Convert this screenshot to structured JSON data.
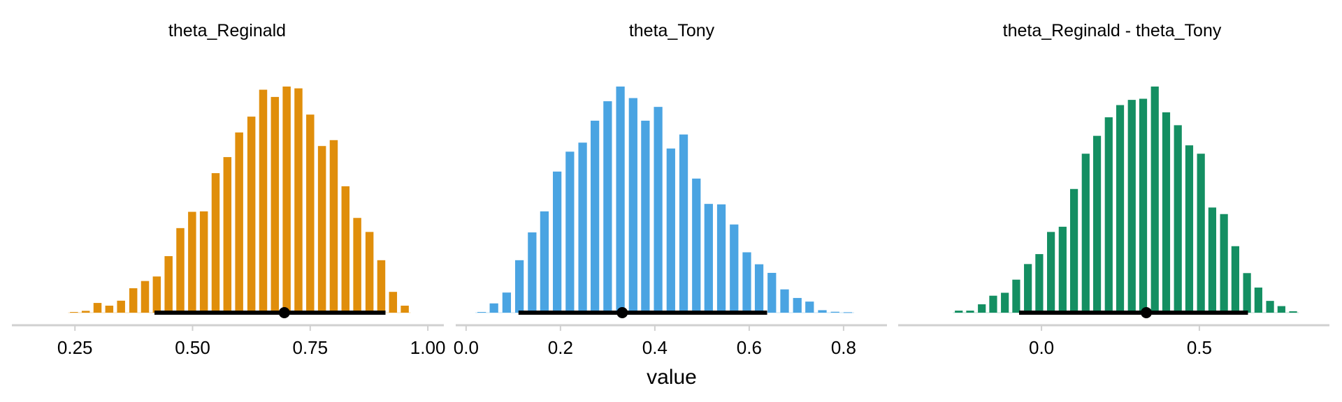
{
  "chart_data": [
    {
      "type": "bar",
      "title": "theta_Reginald",
      "color": "#E08E0B",
      "xlim": [
        0.116,
        1.034
      ],
      "xticks": [
        0.25,
        0.5,
        0.75,
        1.0
      ],
      "xtick_labels": [
        "0.25",
        "0.50",
        "0.75",
        "1.00"
      ],
      "bin_width": 0.0251,
      "x": [
        0.248,
        0.273,
        0.298,
        0.323,
        0.348,
        0.374,
        0.399,
        0.424,
        0.449,
        0.474,
        0.499,
        0.524,
        0.549,
        0.574,
        0.599,
        0.625,
        0.65,
        0.675,
        0.7,
        0.725,
        0.75,
        0.775,
        0.8,
        0.825,
        0.85,
        0.876,
        0.901,
        0.926,
        0.951
      ],
      "density": [
        0.003,
        0.008,
        0.043,
        0.031,
        0.053,
        0.108,
        0.14,
        0.16,
        0.25,
        0.374,
        0.446,
        0.448,
        0.617,
        0.688,
        0.797,
        0.867,
        0.986,
        0.954,
        1.0,
        0.992,
        0.876,
        0.737,
        0.763,
        0.559,
        0.419,
        0.357,
        0.232,
        0.092,
        0.031
      ],
      "interval": [
        0.419,
        0.91
      ],
      "point_estimate": 0.695
    },
    {
      "type": "bar",
      "title": "theta_Tony",
      "color": "#4AA4E2",
      "xlim": [
        -0.022,
        0.892
      ],
      "xticks": [
        0.0,
        0.2,
        0.4,
        0.6,
        0.8
      ],
      "xtick_labels": [
        "0.0",
        "0.2",
        "0.4",
        "0.6",
        "0.8"
      ],
      "bin_width": 0.0267,
      "x": [
        0.033,
        0.059,
        0.086,
        0.113,
        0.14,
        0.166,
        0.193,
        0.22,
        0.247,
        0.273,
        0.3,
        0.327,
        0.354,
        0.38,
        0.407,
        0.434,
        0.461,
        0.488,
        0.514,
        0.541,
        0.568,
        0.595,
        0.621,
        0.648,
        0.675,
        0.702,
        0.728,
        0.755,
        0.782,
        0.809
      ],
      "density": [
        0.003,
        0.041,
        0.089,
        0.232,
        0.355,
        0.448,
        0.624,
        0.712,
        0.752,
        0.849,
        0.935,
        1.0,
        0.949,
        0.849,
        0.91,
        0.726,
        0.788,
        0.593,
        0.481,
        0.479,
        0.39,
        0.267,
        0.214,
        0.176,
        0.103,
        0.065,
        0.049,
        0.011,
        0.004,
        0.002
      ],
      "interval": [
        0.111,
        0.638
      ],
      "point_estimate": 0.331
    },
    {
      "type": "bar",
      "title": "theta_Reginald - theta_Tony",
      "color": "#148F62",
      "xlim": [
        -0.454,
        0.912
      ],
      "xticks": [
        0.0,
        0.5
      ],
      "xtick_labels": [
        "0.0",
        "0.5"
      ],
      "bin_width": 0.0365,
      "x": [
        -0.262,
        -0.226,
        -0.189,
        -0.153,
        -0.116,
        -0.08,
        -0.043,
        -0.007,
        0.03,
        0.067,
        0.103,
        0.14,
        0.176,
        0.213,
        0.249,
        0.286,
        0.322,
        0.359,
        0.395,
        0.432,
        0.468,
        0.505,
        0.541,
        0.578,
        0.614,
        0.651,
        0.687,
        0.724,
        0.76,
        0.797
      ],
      "density": [
        0.009,
        0.009,
        0.037,
        0.075,
        0.088,
        0.146,
        0.215,
        0.259,
        0.357,
        0.38,
        0.547,
        0.703,
        0.782,
        0.864,
        0.918,
        0.941,
        0.946,
        1.0,
        0.886,
        0.829,
        0.74,
        0.703,
        0.465,
        0.436,
        0.294,
        0.175,
        0.111,
        0.052,
        0.029,
        0.006
      ],
      "interval": [
        -0.071,
        0.654
      ],
      "point_estimate": 0.332
    }
  ],
  "xlabel": "value"
}
